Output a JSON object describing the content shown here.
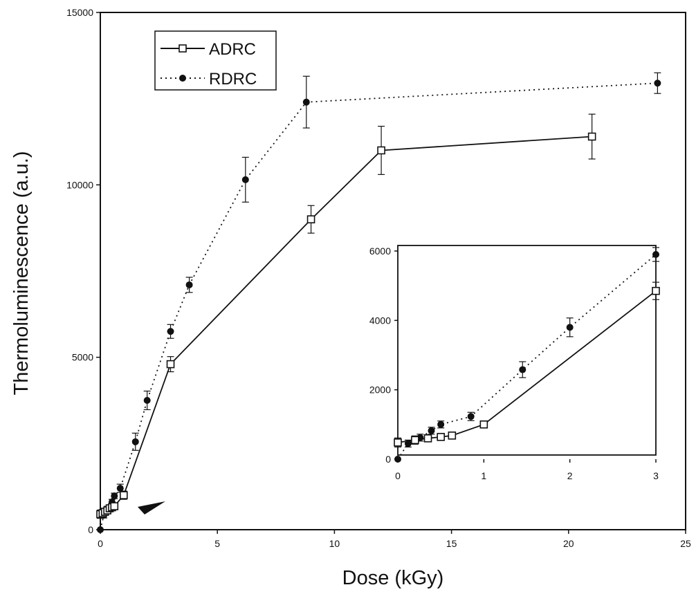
{
  "chart_data": [
    {
      "type": "line",
      "xlabel": "Dose (kGy)",
      "ylabel": "Thermoluminescence (a.u.)",
      "xlim": [
        0,
        25
      ],
      "ylim": [
        0,
        15000
      ],
      "x_ticks": [
        "0",
        "5",
        "10",
        "15",
        "20",
        "25"
      ],
      "y_ticks": [
        "0",
        "5000",
        "10000",
        "15000"
      ],
      "grid": false,
      "legend_position": "top-left",
      "series": [
        {
          "name": "ADRC",
          "line": "solid",
          "marker": "open-square",
          "x": [
            0,
            0.1,
            0.2,
            0.3,
            0.4,
            0.5,
            0.6,
            1,
            3,
            9,
            12,
            21
          ],
          "y": [
            450,
            480,
            520,
            560,
            620,
            650,
            680,
            1000,
            4800,
            9000,
            11000,
            11400
          ],
          "err": [
            120,
            100,
            100,
            100,
            100,
            100,
            100,
            120,
            220,
            400,
            700,
            650
          ]
        },
        {
          "name": "RDRC",
          "line": "dotted",
          "marker": "filled-circle",
          "x": [
            0,
            0.15,
            0.3,
            0.5,
            0.6,
            0.85,
            1.5,
            2,
            3,
            3.8,
            6.2,
            8.8,
            23.8
          ],
          "y": [
            0,
            420,
            600,
            800,
            980,
            1200,
            2550,
            3750,
            5750,
            7100,
            10150,
            12400,
            12950
          ],
          "err": [
            0,
            80,
            80,
            80,
            80,
            120,
            250,
            270,
            200,
            220,
            650,
            750,
            300
          ]
        }
      ]
    },
    {
      "type": "line",
      "role": "inset",
      "xlim": [
        0,
        3
      ],
      "ylim": [
        0,
        6000
      ],
      "x_ticks": [
        "0",
        "1",
        "2",
        "3"
      ],
      "y_ticks": [
        "0",
        "2000",
        "4000",
        "6000"
      ],
      "series": [
        {
          "name": "ADRC",
          "line": "solid",
          "marker": "open-square",
          "x": [
            0,
            0.2,
            0.35,
            0.5,
            0.63,
            1,
            3
          ],
          "y": [
            480,
            550,
            600,
            640,
            680,
            1000,
            4850
          ],
          "err": [
            130,
            120,
            100,
            100,
            100,
            100,
            250
          ]
        },
        {
          "name": "RDRC",
          "line": "dotted",
          "marker": "filled-circle",
          "x": [
            0,
            0.12,
            0.26,
            0.39,
            0.5,
            0.85,
            1.45,
            2,
            3
          ],
          "y": [
            0,
            450,
            620,
            820,
            1000,
            1230,
            2580,
            3800,
            5900
          ],
          "err": [
            0,
            100,
            100,
            100,
            100,
            120,
            230,
            270,
            200
          ]
        }
      ]
    }
  ]
}
